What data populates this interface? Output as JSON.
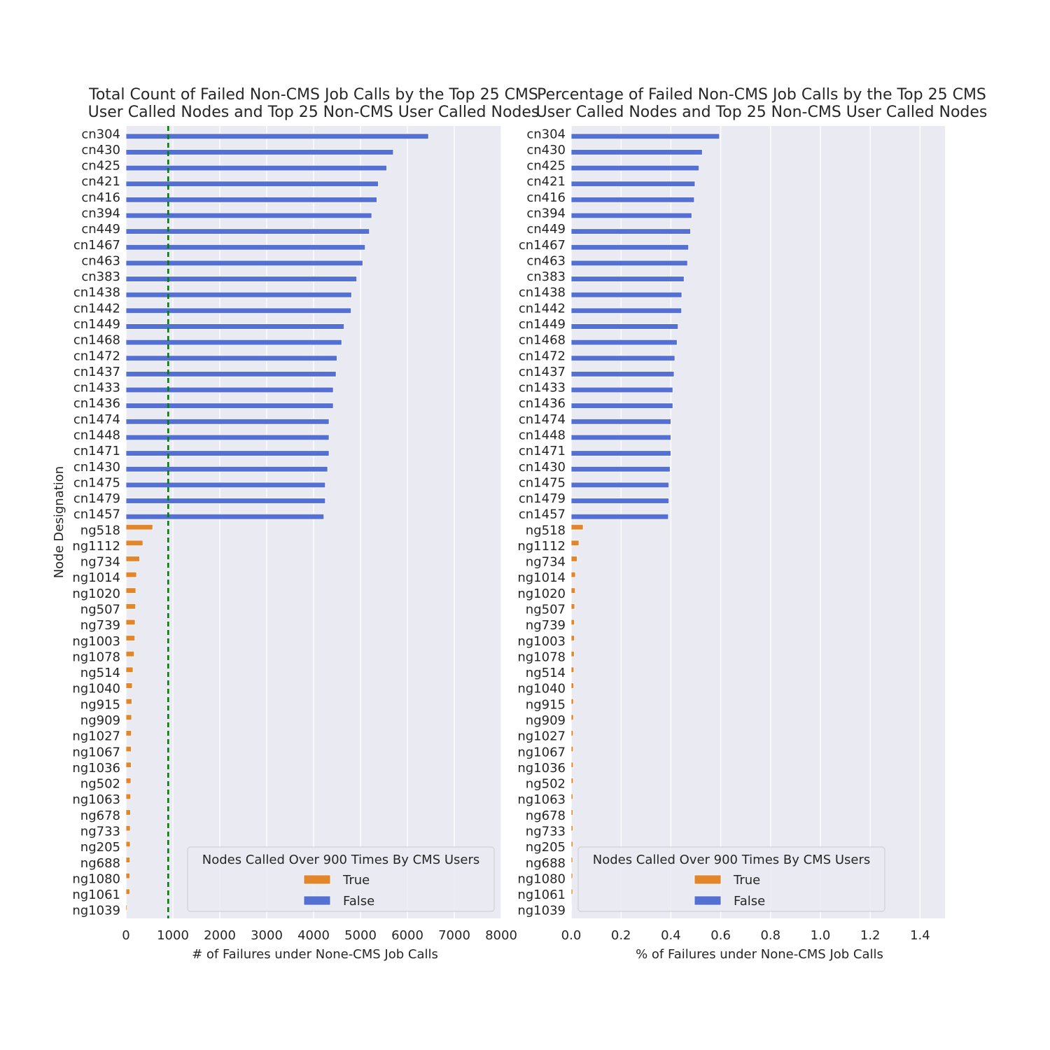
{
  "chart_data": [
    {
      "type": "bar",
      "orientation": "horizontal",
      "title_line1": "Total Count of Failed Non-CMS Job Calls by the Top 25 CMS",
      "title_line2": "User Called Nodes and Top 25 Non-CMS User Called Nodes",
      "xlabel": "# of Failures under None-CMS Job Calls",
      "ylabel": "Node Designation",
      "xlim": [
        0,
        8000
      ],
      "xticks": [
        0,
        1000,
        2000,
        3000,
        4000,
        5000,
        6000,
        7000,
        8000
      ],
      "grid": true,
      "reference_line": {
        "x": 900,
        "style": "dashed",
        "color": "#008000"
      },
      "categories": [
        "cn304",
        "cn430",
        "cn425",
        "cn421",
        "cn416",
        "cn394",
        "cn449",
        "cn1467",
        "cn463",
        "cn383",
        "cn1438",
        "cn1442",
        "cn1449",
        "cn1468",
        "cn1472",
        "cn1437",
        "cn1433",
        "cn1436",
        "cn1474",
        "cn1448",
        "cn1471",
        "cn1430",
        "cn1475",
        "cn1479",
        "cn1457",
        "ng518",
        "ng1112",
        "ng734",
        "ng1014",
        "ng1020",
        "ng507",
        "ng739",
        "ng1003",
        "ng1078",
        "ng514",
        "ng1040",
        "ng915",
        "ng909",
        "ng1027",
        "ng1067",
        "ng1036",
        "ng502",
        "ng1063",
        "ng678",
        "ng733",
        "ng205",
        "ng688",
        "ng1080",
        "ng1061",
        "ng1039"
      ],
      "series": [
        {
          "name": "False",
          "values": [
            6450,
            5700,
            5560,
            5380,
            5350,
            5240,
            5190,
            5100,
            5050,
            4920,
            4810,
            4800,
            4650,
            4600,
            4500,
            4480,
            4420,
            4420,
            4330,
            4330,
            4330,
            4300,
            4250,
            4250,
            4220,
            null,
            null,
            null,
            null,
            null,
            null,
            null,
            null,
            null,
            null,
            null,
            null,
            null,
            null,
            null,
            null,
            null,
            null,
            null,
            null,
            null,
            null,
            null,
            null,
            null
          ]
        },
        {
          "name": "True",
          "values": [
            null,
            null,
            null,
            null,
            null,
            null,
            null,
            null,
            null,
            null,
            null,
            null,
            null,
            null,
            null,
            null,
            null,
            null,
            null,
            null,
            null,
            null,
            null,
            null,
            null,
            570,
            360,
            290,
            225,
            210,
            205,
            195,
            190,
            175,
            150,
            135,
            125,
            120,
            115,
            110,
            110,
            105,
            100,
            95,
            90,
            90,
            85,
            80,
            80,
            25
          ]
        }
      ],
      "legend": {
        "title": "Nodes Called Over 900 Times By CMS Users",
        "placement": "lower-right",
        "entries": [
          "True",
          "False"
        ]
      }
    },
    {
      "type": "bar",
      "orientation": "horizontal",
      "title_line1": "Percentage of Failed Non-CMS Job Calls by the Top 25 CMS",
      "title_line2": "User Called Nodes and Top 25 Non-CMS User Called Nodes",
      "xlabel": "% of Failures under None-CMS Job Calls",
      "xlim": [
        0,
        1.5
      ],
      "xticks": [
        "0.0",
        "0.2",
        "0.4",
        "0.6",
        "0.8",
        "1.0",
        "1.2",
        "1.4"
      ],
      "grid": true,
      "categories": [
        "cn304",
        "cn430",
        "cn425",
        "cn421",
        "cn416",
        "cn394",
        "cn449",
        "cn1467",
        "cn463",
        "cn383",
        "cn1438",
        "cn1442",
        "cn1449",
        "cn1468",
        "cn1472",
        "cn1437",
        "cn1433",
        "cn1436",
        "cn1474",
        "cn1448",
        "cn1471",
        "cn1430",
        "cn1475",
        "cn1479",
        "cn1457",
        "ng518",
        "ng1112",
        "ng734",
        "ng1014",
        "ng1020",
        "ng507",
        "ng739",
        "ng1003",
        "ng1078",
        "ng514",
        "ng1040",
        "ng915",
        "ng909",
        "ng1027",
        "ng1067",
        "ng1036",
        "ng502",
        "ng1063",
        "ng678",
        "ng733",
        "ng205",
        "ng688",
        "ng1080",
        "ng1061",
        "ng1039"
      ],
      "series": [
        {
          "name": "False",
          "values": [
            0.595,
            0.526,
            0.513,
            0.497,
            0.494,
            0.484,
            0.479,
            0.471,
            0.467,
            0.453,
            0.444,
            0.443,
            0.429,
            0.425,
            0.416,
            0.413,
            0.408,
            0.408,
            0.4,
            0.4,
            0.4,
            0.397,
            0.392,
            0.392,
            0.39,
            null,
            null,
            null,
            null,
            null,
            null,
            null,
            null,
            null,
            null,
            null,
            null,
            null,
            null,
            null,
            null,
            null,
            null,
            null,
            null,
            null,
            null,
            null,
            null,
            null
          ]
        },
        {
          "name": "True",
          "values": [
            null,
            null,
            null,
            null,
            null,
            null,
            null,
            null,
            null,
            null,
            null,
            null,
            null,
            null,
            null,
            null,
            null,
            null,
            null,
            null,
            null,
            null,
            null,
            null,
            null,
            0.048,
            0.031,
            0.024,
            0.017,
            0.016,
            0.014,
            0.013,
            0.013,
            0.012,
            0.011,
            0.01,
            0.009,
            0.009,
            0.008,
            0.008,
            0.008,
            0.008,
            0.007,
            0.007,
            0.007,
            0.007,
            0.006,
            0.006,
            0.006,
            0.002
          ]
        }
      ],
      "legend": {
        "title": "Nodes Called Over 900 Times By CMS Users",
        "placement": "lower-left",
        "entries": [
          "True",
          "False"
        ]
      }
    }
  ],
  "colors": {
    "true": "#e1862a",
    "false": "#5470d3",
    "background": "#eaeaf2",
    "grid": "#ffffff",
    "reference_line": "#008000"
  }
}
